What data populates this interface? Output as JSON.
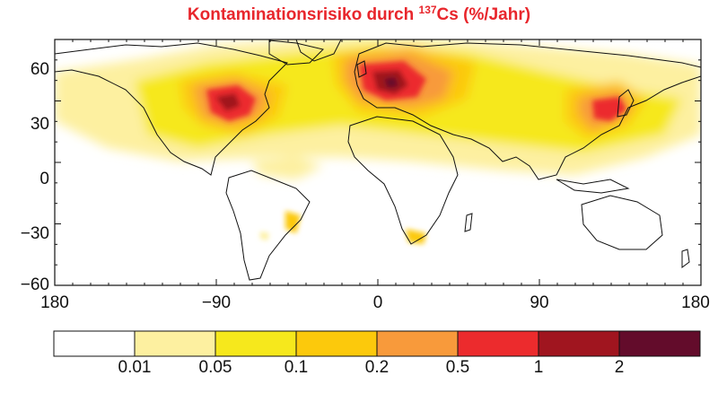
{
  "title": {
    "prefix": "Kontaminationsrisiko durch ",
    "superscript": "137",
    "suffix": "Cs (%/Jahr)"
  },
  "axes": {
    "x_ticks": [
      "180",
      "−90",
      "0",
      "90",
      "180"
    ],
    "y_ticks": [
      "60",
      "30",
      "0",
      "−30",
      "−60"
    ]
  },
  "colorbar": {
    "colors": [
      "#ffffff",
      "#fdf0a0",
      "#f6e81c",
      "#fcc90c",
      "#f89a3b",
      "#ec2b2d",
      "#a0151f",
      "#630c2b"
    ],
    "labels": [
      "0.01",
      "0.05",
      "0.1",
      "0.2",
      "0.5",
      "1",
      "2"
    ]
  }
}
